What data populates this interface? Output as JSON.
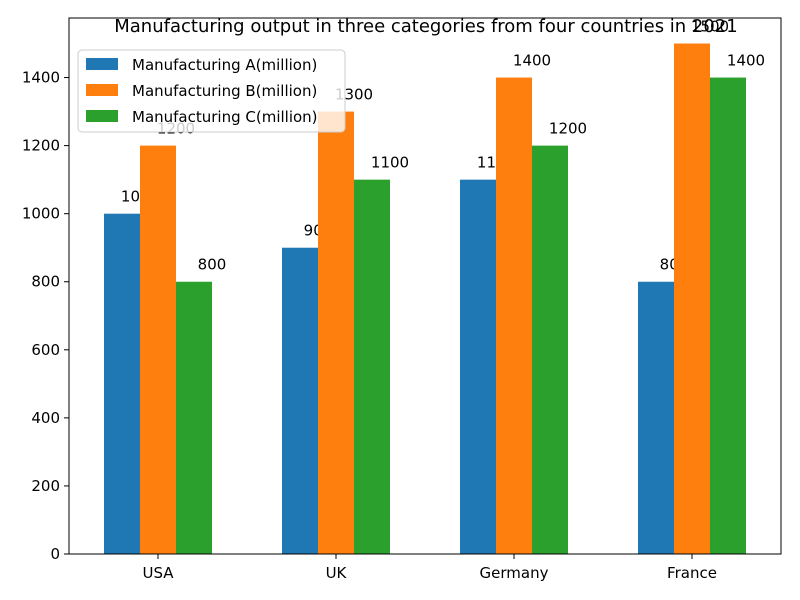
{
  "chart_data": {
    "type": "bar",
    "title": "Manufacturing output in three categories from four countries in 2021",
    "xlabel": "",
    "ylabel": "",
    "categories": [
      "USA",
      "UK",
      "Germany",
      "France"
    ],
    "series": [
      {
        "name": "Manufacturing A(million)",
        "values": [
          1000,
          900,
          1100,
          800
        ],
        "color": "#1f77b4"
      },
      {
        "name": "Manufacturing B(million)",
        "values": [
          1200,
          1300,
          1400,
          1500
        ],
        "color": "#ff7f0e"
      },
      {
        "name": "Manufacturing C(million)",
        "values": [
          800,
          1100,
          1200,
          1400
        ],
        "color": "#2ca02c"
      }
    ],
    "ylim": [
      0,
      1575
    ],
    "yticks": [
      0,
      200,
      400,
      600,
      800,
      1000,
      1200,
      1400
    ],
    "grid": false,
    "legend_position": "top-left"
  }
}
